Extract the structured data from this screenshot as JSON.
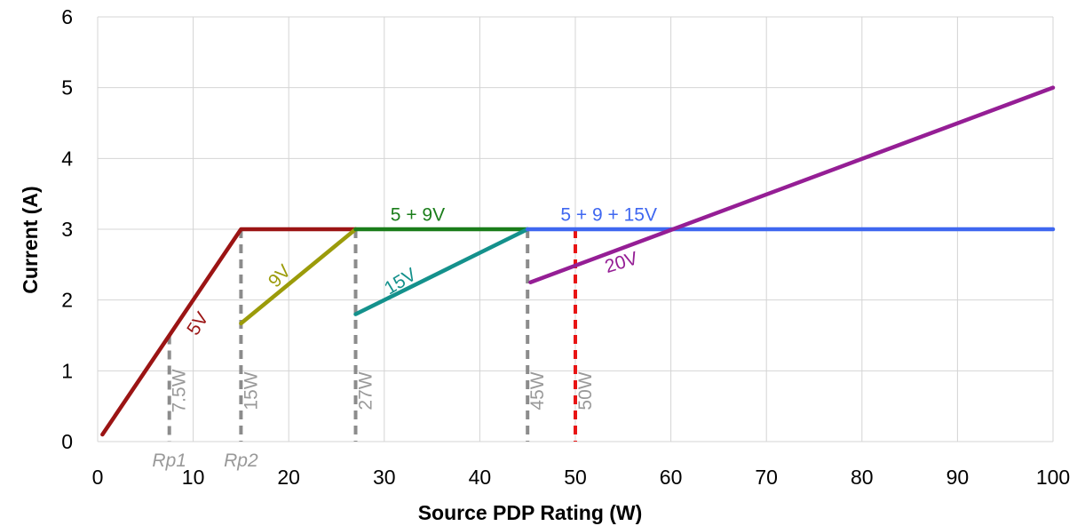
{
  "chart_data": {
    "type": "line",
    "xlabel": "Source PDP Rating (W)",
    "ylabel": "Current (A)",
    "xlim": [
      0,
      100
    ],
    "ylim": [
      0,
      6
    ],
    "x_ticks": [
      0,
      10,
      20,
      30,
      40,
      50,
      60,
      70,
      80,
      90,
      100
    ],
    "y_ticks": [
      0,
      1,
      2,
      3,
      4,
      5,
      6
    ],
    "grid": true,
    "series": [
      {
        "name": "5V",
        "color": "#9b1414",
        "points": [
          [
            0.5,
            0.1
          ],
          [
            15,
            3
          ],
          [
            27,
            3
          ]
        ]
      },
      {
        "name": "9V",
        "color": "#9b9b0a",
        "points": [
          [
            15,
            1.67
          ],
          [
            27,
            3
          ]
        ]
      },
      {
        "name": "5 + 9V",
        "color": "#1a7d1a",
        "points": [
          [
            27,
            3
          ],
          [
            45,
            3
          ]
        ]
      },
      {
        "name": "15V",
        "color": "#14918c",
        "points": [
          [
            27,
            1.8
          ],
          [
            45,
            3
          ]
        ]
      },
      {
        "name": "5 + 9 + 15V",
        "color": "#3f67f0",
        "points": [
          [
            45,
            3
          ],
          [
            100,
            3
          ]
        ]
      },
      {
        "name": "20V",
        "color": "#951e95",
        "points": [
          [
            45.3,
            2.25
          ],
          [
            100,
            5
          ]
        ]
      }
    ],
    "vlines": [
      {
        "x": 7.5,
        "label": "7.5W",
        "color": "#8c8c8c"
      },
      {
        "x": 15,
        "label": "15W",
        "color": "#8c8c8c"
      },
      {
        "x": 27,
        "label": "27W",
        "color": "#8c8c8c"
      },
      {
        "x": 45,
        "label": "45W",
        "color": "#8c8c8c"
      },
      {
        "x": 50,
        "label": "50W",
        "color": "#e81414"
      }
    ],
    "below_axis_labels": [
      {
        "x": 7.5,
        "text": "Rp1"
      },
      {
        "x": 15,
        "text": "Rp2"
      }
    ]
  }
}
